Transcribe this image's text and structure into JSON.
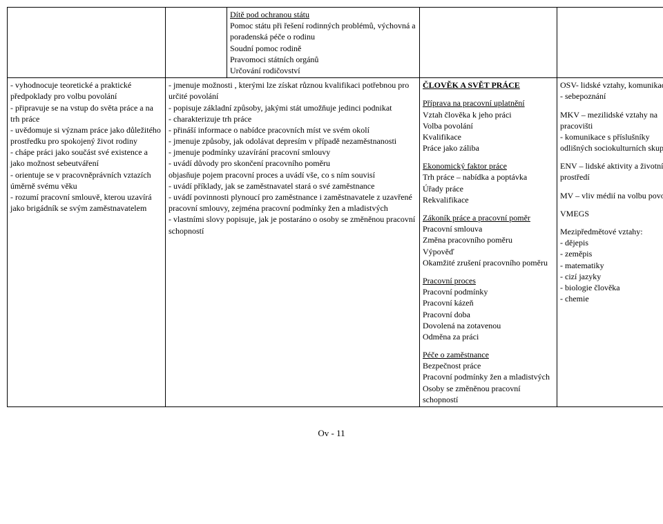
{
  "top": {
    "col1": "",
    "col2": "",
    "col3_lines": [
      {
        "text": "Dítě pod ochranou státu",
        "class": "underline"
      },
      {
        "text": "Pomoc státu při řešení rodinných problémů, výchovná a poradenská péče o rodinu"
      },
      {
        "text": "Soudní pomoc rodině"
      },
      {
        "text": "Pravomoci státních orgánů"
      },
      {
        "text": "Určování rodičovství"
      }
    ],
    "col4": "",
    "col5": ""
  },
  "bottom": {
    "col1_lines": [
      {
        "text": "- vyhodnocuje teoretické a praktické předpoklady pro volbu povolání"
      },
      {
        "text": "- připravuje se na vstup do  světa práce a na trh práce"
      },
      {
        "text": "- uvědomuje si význam práce jako důležitého prostředku  pro spokojený život rodiny"
      },
      {
        "text": "- chápe práci jako součást své existence a jako možnost sebeutváření"
      },
      {
        "text": "- orientuje se v pracovněprávních vztazích úměrně svému věku"
      },
      {
        "text": "- rozumí pracovní smlouvě, kterou uzavírá jako brigádník se svým zaměstnavatelem"
      }
    ],
    "col2_lines": [
      {
        "text": "- jmenuje možnosti , kterými lze získat různou kvalifikaci potřebnou pro určité povolání"
      },
      {
        "text": "- popisuje základní způsoby, jakými stát umožňuje jedinci podnikat"
      },
      {
        "text": "- charakterizuje trh práce"
      },
      {
        "text": "- přináší informace o nabídce pracovních míst ve svém okolí"
      },
      {
        "text": "- jmenuje způsoby, jak odolávat depresím v případě nezaměstnanosti"
      },
      {
        "text": "- jmenuje podmínky uzavírání pracovní smlouvy"
      },
      {
        "text": " - uvádí důvody pro skončení pracovního poměru"
      },
      {
        "text": "objasňuje pojem pracovní proces a  uvádí vše, co s ním souvisí"
      },
      {
        "text": "- uvádí příklady, jak se zaměstnavatel stará o své zaměstnance"
      },
      {
        "text": "- uvádí povinnosti plynoucí pro zaměstnance i zaměstnavatele z uzavřené pracovní smlouvy, zejména  pracovní podmínky žen a mladistvých"
      },
      {
        "text": "- vlastními slovy popisuje, jak je postaráno o osoby se změněnou pracovní schopností"
      }
    ],
    "col3_lines": [
      {
        "text": "ČLOVĚK A SVĚT PRÁCE",
        "class": "underline bold"
      },
      {
        "text": "",
        "class": "spacer"
      },
      {
        "text": "Příprava na pracovní uplatnění",
        "class": "underline"
      },
      {
        "text": "Vztah člověka k jeho práci"
      },
      {
        "text": "Volba povolání"
      },
      {
        "text": "Kvalifikace"
      },
      {
        "text": "Práce jako záliba"
      },
      {
        "text": "",
        "class": "spacer"
      },
      {
        "text": "Ekonomický faktor práce",
        "class": "underline"
      },
      {
        "text": "Trh práce – nabídka a poptávka"
      },
      {
        "text": "Úřady práce"
      },
      {
        "text": "Rekvalifikace"
      },
      {
        "text": "",
        "class": "spacer"
      },
      {
        "text": "Zákoník práce a pracovní poměr",
        "class": "underline"
      },
      {
        "text": "Pracovní smlouva"
      },
      {
        "text": "Změna pracovního poměru"
      },
      {
        "text": "Výpověď"
      },
      {
        "text": "Okamžité zrušení pracovního poměru"
      },
      {
        "text": "",
        "class": "spacer"
      },
      {
        "text": "Pracovní proces",
        "class": "underline"
      },
      {
        "text": "Pracovní podmínky"
      },
      {
        "text": "Pracovní kázeň"
      },
      {
        "text": "Pracovní doba"
      },
      {
        "text": "Dovolená na zotavenou"
      },
      {
        "text": "Odměna za práci"
      },
      {
        "text": "",
        "class": "spacer"
      },
      {
        "text": "Péče o zaměstnance",
        "class": "underline"
      },
      {
        "text": "Bezpečnost práce"
      },
      {
        "text": "Pracovní podmínky žen a mladistvých"
      },
      {
        "text": "Osoby se změněnou pracovní schopností"
      }
    ],
    "col4_lines": [
      {
        "text": "OSV- lidské vztahy, komunikace"
      },
      {
        "text": "- sebepoznání"
      },
      {
        "text": "",
        "class": "spacer"
      },
      {
        "text": "MKV – mezilidské vztahy na pracovišti"
      },
      {
        "text": "- komunikace s příslušníky odlišných sociokulturních skupin"
      },
      {
        "text": "",
        "class": "spacer"
      },
      {
        "text": "ENV – lidské aktivity a životní prostředí"
      },
      {
        "text": "",
        "class": "spacer"
      },
      {
        "text": "MV – vliv médií na volbu povolání"
      },
      {
        "text": "",
        "class": "spacer"
      },
      {
        "text": "VMEGS"
      },
      {
        "text": "",
        "class": "spacer"
      },
      {
        "text": "Mezipředmětové vztahy:"
      },
      {
        "text": "- dějepis"
      },
      {
        "text": "- zeměpis"
      },
      {
        "text": "- matematiky"
      },
      {
        "text": "- cizí jazyky"
      },
      {
        "text": "- biologie člověka"
      },
      {
        "text": "- chemie"
      }
    ]
  },
  "footer": "Ov - 11"
}
